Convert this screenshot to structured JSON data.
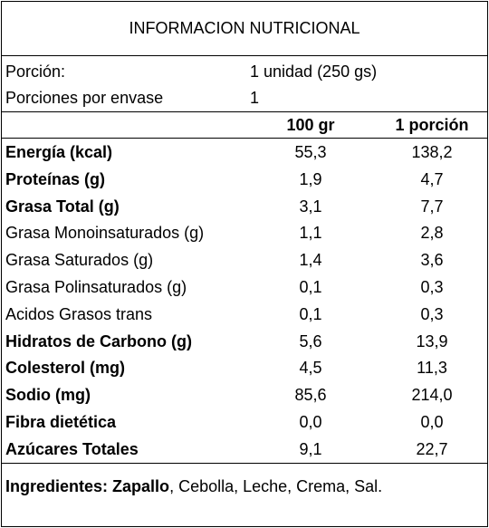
{
  "title": "INFORMACION NUTRICIONAL",
  "serving": {
    "portion_label": "Porción:",
    "portion_value": "1 unidad (250 gs)",
    "per_pack_label": "Porciones por envase",
    "per_pack_value": "1"
  },
  "columns": {
    "col1": "100 gr",
    "col2": "1 porción"
  },
  "rows": [
    {
      "label": "Energía (kcal)",
      "v100": "55,3",
      "vportion": "138,2",
      "bold": true
    },
    {
      "label": "Proteínas (g)",
      "v100": "1,9",
      "vportion": "4,7",
      "bold": true
    },
    {
      "label": "Grasa Total (g)",
      "v100": "3,1",
      "vportion": "7,7",
      "bold": true
    },
    {
      "label": "Grasa Monoinsaturados (g)",
      "v100": "1,1",
      "vportion": "2,8",
      "bold": false
    },
    {
      "label": "Grasa Saturados (g)",
      "v100": "1,4",
      "vportion": "3,6",
      "bold": false
    },
    {
      "label": "Grasa Polinsaturados (g)",
      "v100": "0,1",
      "vportion": "0,3",
      "bold": false
    },
    {
      "label": "Acidos Grasos trans",
      "v100": "0,1",
      "vportion": "0,3",
      "bold": false
    },
    {
      "label": "Hidratos de Carbono (g)",
      "v100": "5,6",
      "vportion": "13,9",
      "bold": true
    },
    {
      "label": "Colesterol (mg)",
      "v100": "4,5",
      "vportion": "11,3",
      "bold": true
    },
    {
      "label": "Sodio (mg)",
      "v100": "85,6",
      "vportion": "214,0",
      "bold": true
    },
    {
      "label": "Fibra dietética",
      "v100": "0,0",
      "vportion": "0,0",
      "bold": true
    },
    {
      "label": "Azúcares Totales",
      "v100": "9,1",
      "vportion": "22,7",
      "bold": true
    }
  ],
  "ingredients": {
    "label": "Ingredientes:",
    "highlight": "Zapallo",
    "rest": ", Cebolla, Leche, Crema, Sal."
  }
}
